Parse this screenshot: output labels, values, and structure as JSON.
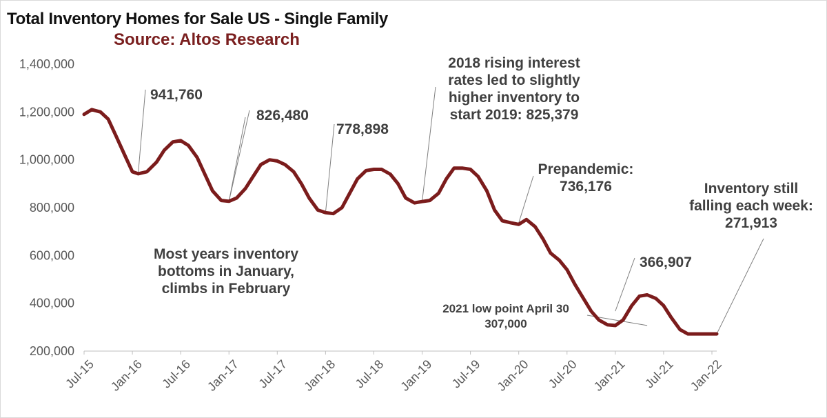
{
  "chart_data": {
    "type": "line",
    "title": "Total Inventory Homes for Sale US - Single Family",
    "subtitle": "Source: Altos Research",
    "xlabel": "",
    "ylabel": "",
    "ylim": [
      200000,
      1400000
    ],
    "y_ticks": [
      "1,400,000",
      "1,200,000",
      "1,000,000",
      "800,000",
      "600,000",
      "400,000",
      "200,000"
    ],
    "x_ticks": [
      "Jul-15",
      "Jan-16",
      "Jul-16",
      "Jan-17",
      "Jul-17",
      "Jan-18",
      "Jul-18",
      "Jan-19",
      "Jul-19",
      "Jan-20",
      "Jul-20",
      "Jan-21",
      "Jul-21",
      "Jan-22"
    ],
    "line_color": "#7b1c1c",
    "grid": false,
    "series": [
      {
        "x": [
          2015.5,
          2015.58,
          2015.67,
          2015.75,
          2015.83,
          2015.92,
          2016.0,
          2016.06,
          2016.15,
          2016.25,
          2016.33,
          2016.42,
          2016.5,
          2016.58,
          2016.67,
          2016.75,
          2016.83,
          2016.92,
          2017.0,
          2017.08,
          2017.17,
          2017.25,
          2017.33,
          2017.42,
          2017.5,
          2017.58,
          2017.67,
          2017.75,
          2017.83,
          2017.92,
          2018.0,
          2018.08,
          2018.17,
          2018.25,
          2018.33,
          2018.42,
          2018.5,
          2018.58,
          2018.67,
          2018.75,
          2018.83,
          2018.92,
          2019.0,
          2019.08,
          2019.17,
          2019.25,
          2019.33,
          2019.42,
          2019.5,
          2019.58,
          2019.67,
          2019.75,
          2019.83,
          2019.92,
          2020.0,
          2020.08,
          2020.17,
          2020.25,
          2020.33,
          2020.42,
          2020.5,
          2020.58,
          2020.67,
          2020.75,
          2020.83,
          2020.92,
          2021.0,
          2021.08,
          2021.17,
          2021.25,
          2021.33,
          2021.42,
          2021.5,
          2021.58,
          2021.67,
          2021.75,
          2021.83,
          2021.92,
          2022.0,
          2022.05
        ],
        "values": [
          1190000,
          1210000,
          1200000,
          1170000,
          1100000,
          1020000,
          950000,
          941760,
          950000,
          990000,
          1040000,
          1075000,
          1080000,
          1060000,
          1010000,
          940000,
          870000,
          830000,
          826480,
          840000,
          880000,
          930000,
          980000,
          1000000,
          995000,
          980000,
          950000,
          900000,
          840000,
          790000,
          778898,
          775000,
          800000,
          860000,
          920000,
          955000,
          960000,
          960000,
          940000,
          900000,
          840000,
          820000,
          825379,
          830000,
          860000,
          920000,
          965000,
          965000,
          960000,
          930000,
          870000,
          790000,
          745000,
          736176,
          730000,
          750000,
          720000,
          670000,
          610000,
          580000,
          540000,
          480000,
          420000,
          366907,
          330000,
          310000,
          307000,
          330000,
          390000,
          430000,
          435000,
          420000,
          390000,
          340000,
          290000,
          271913,
          271913,
          271913,
          271913,
          271913
        ]
      }
    ],
    "annotations": [
      {
        "lines": [
          "941,760"
        ]
      },
      {
        "lines": [
          "826,480"
        ]
      },
      {
        "lines": [
          "778,898"
        ]
      },
      {
        "lines": [
          "2018 rising interest",
          "rates led to slightly",
          "higher inventory to",
          "start 2019: 825,379"
        ]
      },
      {
        "lines": [
          "Prepandemic:",
          "736,176"
        ]
      },
      {
        "lines": [
          "Most years inventory",
          "bottoms in January,",
          "climbs in February"
        ]
      },
      {
        "lines": [
          "366,907"
        ]
      },
      {
        "lines": [
          "2021 low point April 30",
          "307,000"
        ]
      },
      {
        "lines": [
          "Inventory still",
          "falling each week:",
          "271,913"
        ]
      }
    ]
  }
}
